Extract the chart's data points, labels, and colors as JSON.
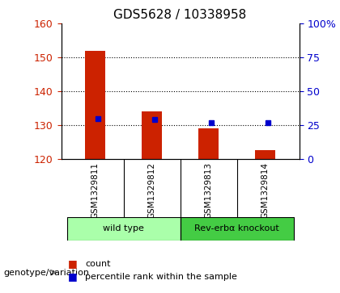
{
  "title": "GDS5628 / 10338958",
  "samples": [
    "GSM1329811",
    "GSM1329812",
    "GSM1329813",
    "GSM1329814"
  ],
  "count_values": [
    152.0,
    134.0,
    129.0,
    122.5
  ],
  "percentile_values": [
    30.0,
    29.0,
    27.0,
    27.0
  ],
  "ylim_left": [
    120,
    160
  ],
  "ylim_right": [
    0,
    100
  ],
  "yticks_left": [
    120,
    130,
    140,
    150,
    160
  ],
  "yticks_right": [
    0,
    25,
    50,
    75,
    100
  ],
  "yticklabels_right": [
    "0",
    "25",
    "50",
    "75",
    "100%"
  ],
  "bar_color": "#cc2200",
  "marker_color": "#0000cc",
  "bar_bottom": 120,
  "groups": [
    {
      "label": "wild type",
      "indices": [
        0,
        1
      ],
      "color": "#aaffaa"
    },
    {
      "label": "Rev-erbα knockout",
      "indices": [
        2,
        3
      ],
      "color": "#44cc44"
    }
  ],
  "group_label": "genotype/variation",
  "legend_items": [
    {
      "color": "#cc2200",
      "label": "count"
    },
    {
      "color": "#0000cc",
      "label": "percentile rank within the sample"
    }
  ],
  "background_color": "#ffffff",
  "plot_bg_color": "#ffffff",
  "label_area_bg": "#cccccc",
  "grid_color": "#000000",
  "bar_width": 0.4,
  "title_fontsize": 11,
  "axis_label_fontsize": 9,
  "tick_fontsize": 9
}
